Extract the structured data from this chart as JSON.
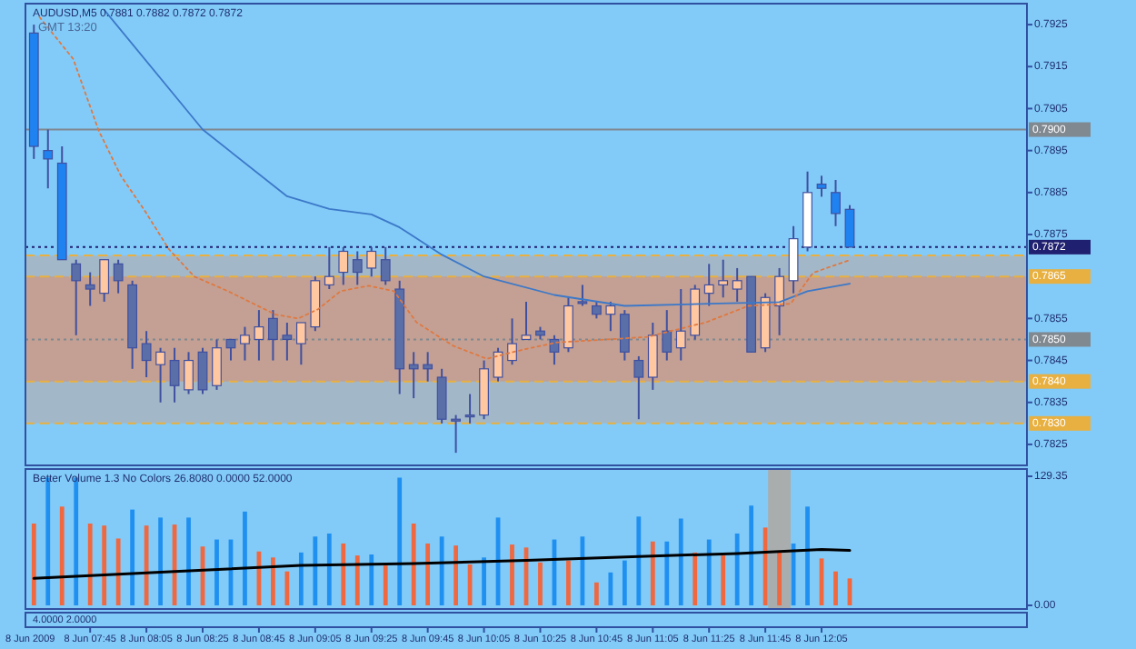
{
  "chart_data": [
    {
      "type": "candlestick",
      "title": "AUDUSD,M5 0.7881 0.7882 0.7872 0.7872",
      "annotations": [
        "GMT 13:20"
      ],
      "x": [
        "2009-06-08T07:25",
        "2009-06-08T07:30",
        "2009-06-08T07:35",
        "2009-06-08T07:40",
        "2009-06-08T07:45",
        "2009-06-08T07:50",
        "2009-06-08T07:55",
        "2009-06-08T08:00",
        "2009-06-08T08:05",
        "2009-06-08T08:10",
        "2009-06-08T08:15",
        "2009-06-08T08:20",
        "2009-06-08T08:25",
        "2009-06-08T08:30",
        "2009-06-08T08:35",
        "2009-06-08T08:40",
        "2009-06-08T08:45",
        "2009-06-08T08:50",
        "2009-06-08T08:55",
        "2009-06-08T09:00",
        "2009-06-08T09:05",
        "2009-06-08T09:10",
        "2009-06-08T09:15",
        "2009-06-08T09:20",
        "2009-06-08T09:25",
        "2009-06-08T09:30",
        "2009-06-08T09:35",
        "2009-06-08T09:40",
        "2009-06-08T09:45",
        "2009-06-08T09:50",
        "2009-06-08T09:55",
        "2009-06-08T10:00",
        "2009-06-08T10:05",
        "2009-06-08T10:10",
        "2009-06-08T10:15",
        "2009-06-08T10:20",
        "2009-06-08T10:25",
        "2009-06-08T10:30",
        "2009-06-08T10:35",
        "2009-06-08T10:40",
        "2009-06-08T10:45",
        "2009-06-08T10:50",
        "2009-06-08T10:55",
        "2009-06-08T11:00",
        "2009-06-08T11:05",
        "2009-06-08T11:10",
        "2009-06-08T11:15",
        "2009-06-08T11:20",
        "2009-06-08T11:25",
        "2009-06-08T11:30",
        "2009-06-08T11:35",
        "2009-06-08T11:40",
        "2009-06-08T11:45",
        "2009-06-08T11:50",
        "2009-06-08T11:55",
        "2009-06-08T12:00",
        "2009-06-08T12:05",
        "2009-06-08T12:10",
        "2009-06-08T12:15"
      ],
      "ohlc": [
        [
          0.7923,
          0.7925,
          0.7893,
          0.7896
        ],
        [
          0.7895,
          0.79,
          0.7886,
          0.7893
        ],
        [
          0.7892,
          0.7896,
          0.7869,
          0.7869
        ],
        [
          0.7868,
          0.7869,
          0.7851,
          0.7864
        ],
        [
          0.7863,
          0.7866,
          0.7858,
          0.7862
        ],
        [
          0.7861,
          0.7869,
          0.7859,
          0.7869
        ],
        [
          0.7868,
          0.7869,
          0.7861,
          0.7864
        ],
        [
          0.7863,
          0.7864,
          0.7843,
          0.7848
        ],
        [
          0.7849,
          0.7852,
          0.7841,
          0.7845
        ],
        [
          0.7844,
          0.7848,
          0.7835,
          0.7847
        ],
        [
          0.7845,
          0.7848,
          0.7835,
          0.7839
        ],
        [
          0.7838,
          0.7847,
          0.7837,
          0.7845
        ],
        [
          0.7847,
          0.7848,
          0.7837,
          0.7838
        ],
        [
          0.7839,
          0.785,
          0.7838,
          0.7848
        ],
        [
          0.785,
          0.785,
          0.7845,
          0.7848
        ],
        [
          0.7849,
          0.7853,
          0.7845,
          0.7851
        ],
        [
          0.785,
          0.7857,
          0.7845,
          0.7853
        ],
        [
          0.7855,
          0.7857,
          0.7845,
          0.785
        ],
        [
          0.7851,
          0.7854,
          0.7845,
          0.785
        ],
        [
          0.7849,
          0.7854,
          0.7844,
          0.7854
        ],
        [
          0.7853,
          0.7865,
          0.7852,
          0.7864
        ],
        [
          0.7863,
          0.7872,
          0.7862,
          0.7865
        ],
        [
          0.7866,
          0.7872,
          0.7863,
          0.7871
        ],
        [
          0.7869,
          0.7871,
          0.7863,
          0.7866
        ],
        [
          0.7867,
          0.7872,
          0.7865,
          0.7871
        ],
        [
          0.7869,
          0.7872,
          0.7863,
          0.7864
        ],
        [
          0.7862,
          0.7864,
          0.7837,
          0.7843
        ],
        [
          0.7844,
          0.7847,
          0.7836,
          0.7843
        ],
        [
          0.7844,
          0.7847,
          0.784,
          0.7843
        ],
        [
          0.7841,
          0.7843,
          0.783,
          0.7831
        ],
        [
          0.7831,
          0.7832,
          0.7823,
          0.7831
        ],
        [
          0.7832,
          0.7837,
          0.783,
          0.7832
        ],
        [
          0.7832,
          0.7845,
          0.7831,
          0.7843
        ],
        [
          0.7841,
          0.7848,
          0.784,
          0.7847
        ],
        [
          0.7845,
          0.7855,
          0.7844,
          0.7849
        ],
        [
          0.785,
          0.7859,
          0.785,
          0.7851
        ],
        [
          0.7852,
          0.7853,
          0.785,
          0.7851
        ],
        [
          0.785,
          0.7851,
          0.7844,
          0.7847
        ],
        [
          0.7848,
          0.786,
          0.7847,
          0.7858
        ],
        [
          0.7859,
          0.7863,
          0.7858,
          0.7859
        ],
        [
          0.7858,
          0.7859,
          0.7855,
          0.7856
        ],
        [
          0.7856,
          0.7859,
          0.7852,
          0.7858
        ],
        [
          0.7856,
          0.7857,
          0.7845,
          0.7847
        ],
        [
          0.7845,
          0.7846,
          0.7831,
          0.7841
        ],
        [
          0.7841,
          0.7854,
          0.7838,
          0.7851
        ],
        [
          0.7852,
          0.7857,
          0.7845,
          0.7847
        ],
        [
          0.7848,
          0.7862,
          0.7845,
          0.7852
        ],
        [
          0.7851,
          0.7863,
          0.785,
          0.7862
        ],
        [
          0.7861,
          0.7868,
          0.7858,
          0.7863
        ],
        [
          0.7863,
          0.7869,
          0.786,
          0.7864
        ],
        [
          0.7862,
          0.7867,
          0.7859,
          0.7864
        ],
        [
          0.7865,
          0.7865,
          0.7847,
          0.7847
        ],
        [
          0.7848,
          0.7861,
          0.7847,
          0.786
        ],
        [
          0.7858,
          0.7867,
          0.7851,
          0.7865
        ],
        [
          0.7864,
          0.7877,
          0.7861,
          0.7874
        ],
        [
          0.7872,
          0.789,
          0.7871,
          0.7885
        ],
        [
          0.7887,
          0.7889,
          0.7884,
          0.7886
        ],
        [
          0.7885,
          0.7888,
          0.7877,
          0.788
        ],
        [
          0.7881,
          0.7882,
          0.7872,
          0.7872
        ]
      ],
      "colors": [
        "#1e82f0",
        "#1e82f0",
        "#1e82f0",
        "#5a6ea8",
        "#5a6ea8",
        "#ffc8a0",
        "#5a6ea8",
        "#5a6ea8",
        "#5a6ea8",
        "#ffc8a0",
        "#5a6ea8",
        "#ffc8a0",
        "#5a6ea8",
        "#ffc8a0",
        "#5a6ea8",
        "#ffc8a0",
        "#ffc8a0",
        "#5a6ea8",
        "#5a6ea8",
        "#ffc8a0",
        "#ffc8a0",
        "#ffc8a0",
        "#ffc8a0",
        "#5a6ea8",
        "#ffc8a0",
        "#5a6ea8",
        "#5a6ea8",
        "#5a6ea8",
        "#5a6ea8",
        "#5a6ea8",
        "#5a6ea8",
        "#5a6ea8",
        "#ffc8a0",
        "#ffc8a0",
        "#ffc8a0",
        "#ffc8a0",
        "#5a6ea8",
        "#5a6ea8",
        "#ffc8a0",
        "#5a6ea8",
        "#5a6ea8",
        "#ffc8a0",
        "#5a6ea8",
        "#5a6ea8",
        "#ffc8a0",
        "#5a6ea8",
        "#ffc8a0",
        "#ffc8a0",
        "#ffc8a0",
        "#ffc8a0",
        "#ffc8a0",
        "#5a6ea8",
        "#ffc8a0",
        "#ffc8a0",
        "#ffffff",
        "#ffffff",
        "#1e82f0",
        "#1e82f0",
        "#1e82f0"
      ],
      "series": [
        {
          "type": "line",
          "color": "#3c78c8",
          "line_style": "solid",
          "x": [
            "2009-06-08T07:50",
            "2009-06-08T08:25",
            "2009-06-08T08:55",
            "2009-06-08T09:10",
            "2009-06-08T09:25",
            "2009-06-08T09:35",
            "2009-06-08T09:50",
            "2009-06-08T10:05",
            "2009-06-08T10:30",
            "2009-06-08T10:55",
            "2009-06-08T11:25",
            "2009-06-08T11:50",
            "2009-06-08T12:00",
            "2009-06-08T12:15"
          ],
          "values": [
            0.79285,
            0.79,
            0.78841,
            0.78811,
            0.78798,
            0.78767,
            0.78702,
            0.7865,
            0.78606,
            0.7858,
            0.78585,
            0.78589,
            0.78615,
            0.78633
          ]
        },
        {
          "type": "line",
          "color": "#e07840",
          "line_style": "dotted",
          "x": [
            "2009-06-08T07:27",
            "2009-06-08T07:39",
            "2009-06-08T07:48",
            "2009-06-08T07:56",
            "2009-06-08T08:04",
            "2009-06-08T08:13",
            "2009-06-08T08:22",
            "2009-06-08T08:34",
            "2009-06-08T08:51",
            "2009-06-08T08:59",
            "2009-06-08T09:06",
            "2009-06-08T09:14",
            "2009-06-08T09:24",
            "2009-06-08T09:33",
            "2009-06-08T09:41",
            "2009-06-08T09:54",
            "2009-06-08T10:06",
            "2009-06-08T10:19",
            "2009-06-08T10:31",
            "2009-06-08T10:44",
            "2009-06-08T11:03",
            "2009-06-08T11:24",
            "2009-06-08T11:39",
            "2009-06-08T11:54",
            "2009-06-08T12:02",
            "2009-06-08T12:15"
          ],
          "values": [
            0.79268,
            0.79168,
            0.78998,
            0.78889,
            0.78811,
            0.78715,
            0.7865,
            0.78615,
            0.78559,
            0.7855,
            0.78572,
            0.78615,
            0.78628,
            0.78615,
            0.78541,
            0.78485,
            0.78454,
            0.78476,
            0.78493,
            0.78498,
            0.78506,
            0.78541,
            0.7858,
            0.78585,
            0.78659,
            0.78689
          ]
        }
      ],
      "xlim": [
        "2009-06-08T07:22",
        "2009-06-08T13:18"
      ],
      "ylim": [
        0.782,
        0.793
      ],
      "yticks": [
        0.7925,
        0.7915,
        0.7905,
        0.7895,
        0.7885,
        0.7875,
        0.7855,
        0.7845,
        0.7835,
        0.7825
      ],
      "tick_labels": "y",
      "ref_lines": [
        {
          "axis": "y",
          "value": 0.79,
          "label": "0.7900",
          "color": "#808890",
          "line_style": "solid"
        },
        {
          "axis": "y",
          "value": 0.785,
          "label": "0.7850",
          "color": "#808890",
          "line_style": "dotted"
        },
        {
          "axis": "y",
          "value": 0.787,
          "color": "#e8b040",
          "line_style": "dashed"
        },
        {
          "axis": "y",
          "value": 0.7865,
          "label": "0.7865",
          "color": "#e8b040",
          "line_style": "dashed"
        },
        {
          "axis": "y",
          "value": 0.784,
          "label": "0.7840",
          "color": "#e8b040",
          "line_style": "dashed"
        },
        {
          "axis": "y",
          "value": 0.783,
          "label": "0.7830",
          "color": "#e8b040",
          "line_style": "dashed"
        },
        {
          "axis": "y",
          "value": 0.7872,
          "label": "0.7872",
          "color": "#202070",
          "line_style": "dotted"
        }
      ],
      "bands": [
        {
          "axis": "y",
          "from": 0.783,
          "to": 0.787,
          "color": "#b8aca8"
        },
        {
          "axis": "y",
          "from": 0.784,
          "to": 0.7865,
          "color": "#d89070"
        }
      ]
    },
    {
      "type": "bar",
      "title": "Better Volume 1.3 No Colors 26.8080 0.0000 52.0000",
      "annotations": [
        "4.0000 2.0000",
        "8 Jun 2009"
      ],
      "x": [
        "2009-06-08T07:25",
        "2009-06-08T07:30",
        "2009-06-08T07:35",
        "2009-06-08T07:40",
        "2009-06-08T07:45",
        "2009-06-08T07:50",
        "2009-06-08T07:55",
        "2009-06-08T08:00",
        "2009-06-08T08:05",
        "2009-06-08T08:10",
        "2009-06-08T08:15",
        "2009-06-08T08:20",
        "2009-06-08T08:25",
        "2009-06-08T08:30",
        "2009-06-08T08:35",
        "2009-06-08T08:40",
        "2009-06-08T08:45",
        "2009-06-08T08:50",
        "2009-06-08T08:55",
        "2009-06-08T09:00",
        "2009-06-08T09:05",
        "2009-06-08T09:10",
        "2009-06-08T09:15",
        "2009-06-08T09:20",
        "2009-06-08T09:25",
        "2009-06-08T09:30",
        "2009-06-08T09:35",
        "2009-06-08T09:40",
        "2009-06-08T09:45",
        "2009-06-08T09:50",
        "2009-06-08T09:55",
        "2009-06-08T10:00",
        "2009-06-08T10:05",
        "2009-06-08T10:10",
        "2009-06-08T10:15",
        "2009-06-08T10:20",
        "2009-06-08T10:25",
        "2009-06-08T10:30",
        "2009-06-08T10:35",
        "2009-06-08T10:40",
        "2009-06-08T10:45",
        "2009-06-08T10:50",
        "2009-06-08T10:55",
        "2009-06-08T11:00",
        "2009-06-08T11:05",
        "2009-06-08T11:10",
        "2009-06-08T11:15",
        "2009-06-08T11:20",
        "2009-06-08T11:25",
        "2009-06-08T11:30",
        "2009-06-08T11:35",
        "2009-06-08T11:40",
        "2009-06-08T11:45",
        "2009-06-08T11:50",
        "2009-06-08T11:55",
        "2009-06-08T12:00",
        "2009-06-08T12:05",
        "2009-06-08T12:10",
        "2009-06-08T12:15"
      ],
      "series": [
        {
          "type": "bar",
          "values": [
            82,
            128,
            99,
            128,
            82,
            80,
            67,
            96,
            80,
            88,
            81,
            88,
            59,
            66,
            66,
            94,
            54,
            48,
            34,
            53,
            69,
            72,
            62,
            50,
            51,
            40,
            128,
            82,
            62,
            69,
            60,
            41,
            48,
            88,
            61,
            58,
            43,
            66,
            45,
            69,
            23,
            33,
            45,
            89,
            64,
            64,
            87,
            53,
            66,
            50,
            72,
            100,
            78,
            54,
            62,
            99,
            47,
            34,
            27
          ],
          "colors": [
            "#f06840",
            "#2090f0",
            "#f06840",
            "#2090f0",
            "#f06840",
            "#f06840",
            "#f06840",
            "#2090f0",
            "#f06840",
            "#2090f0",
            "#f06840",
            "#2090f0",
            "#f06840",
            "#2090f0",
            "#2090f0",
            "#2090f0",
            "#f06840",
            "#f06840",
            "#f06840",
            "#2090f0",
            "#2090f0",
            "#2090f0",
            "#f06840",
            "#f06840",
            "#2090f0",
            "#f06840",
            "#2090f0",
            "#f06840",
            "#f06840",
            "#2090f0",
            "#f06840",
            "#f06840",
            "#2090f0",
            "#2090f0",
            "#f06840",
            "#f06840",
            "#f06840",
            "#2090f0",
            "#f06840",
            "#2090f0",
            "#f06840",
            "#2090f0",
            "#2090f0",
            "#2090f0",
            "#f06840",
            "#2090f0",
            "#2090f0",
            "#f06840",
            "#2090f0",
            "#f06840",
            "#2090f0",
            "#2090f0",
            "#f06840",
            "#f06840",
            "#2090f0",
            "#2090f0",
            "#f06840",
            "#f06840",
            "#f06840"
          ]
        },
        {
          "type": "line",
          "color": "#000000",
          "line_style": "solid",
          "x": [
            "2009-06-08T07:25",
            "2009-06-08T08:15",
            "2009-06-08T09:00",
            "2009-06-08T09:40",
            "2009-06-08T10:20",
            "2009-06-08T11:00",
            "2009-06-08T11:35",
            "2009-06-08T11:50",
            "2009-06-08T12:05",
            "2009-06-08T12:15"
          ],
          "values": [
            27,
            34,
            40,
            42,
            45,
            49,
            52,
            54,
            56,
            55
          ]
        }
      ],
      "xlim": [
        "2009-06-08T07:22",
        "2009-06-08T13:18"
      ],
      "xticks": [
        {
          "value": "2009-06-08T07:45",
          "label": "8 Jun 07:45"
        },
        {
          "value": "2009-06-08T08:05",
          "label": "8 Jun 08:05"
        },
        {
          "value": "2009-06-08T08:25",
          "label": "8 Jun 08:25"
        },
        {
          "value": "2009-06-08T08:45",
          "label": "8 Jun 08:45"
        },
        {
          "value": "2009-06-08T09:05",
          "label": "8 Jun 09:05"
        },
        {
          "value": "2009-06-08T09:25",
          "label": "8 Jun 09:25"
        },
        {
          "value": "2009-06-08T09:45",
          "label": "8 Jun 09:45"
        },
        {
          "value": "2009-06-08T10:05",
          "label": "8 Jun 10:05"
        },
        {
          "value": "2009-06-08T10:25",
          "label": "8 Jun 10:25"
        },
        {
          "value": "2009-06-08T10:45",
          "label": "8 Jun 10:45"
        },
        {
          "value": "2009-06-08T11:05",
          "label": "8 Jun 11:05"
        },
        {
          "value": "2009-06-08T11:25",
          "label": "8 Jun 11:25"
        },
        {
          "value": "2009-06-08T11:45",
          "label": "8 Jun 11:45"
        },
        {
          "value": "2009-06-08T12:05",
          "label": "8 Jun 12:05"
        }
      ],
      "ylim": [
        0,
        129.35
      ],
      "yticks": [
        {
          "value": 0,
          "label": "0.00"
        },
        129.35
      ],
      "bands": [
        {
          "axis": "x",
          "from": "2009-06-08T11:46",
          "to": "2009-06-08T11:54",
          "color": "#b0a8a0"
        }
      ]
    }
  ]
}
